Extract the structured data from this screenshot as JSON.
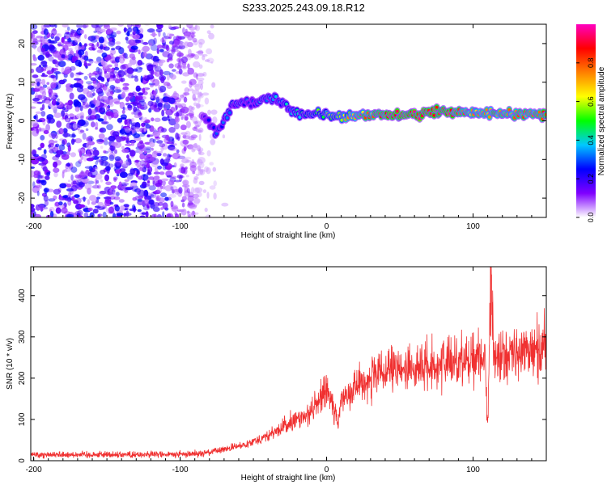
{
  "title": "S233.2025.243.09.18.R12",
  "chart_data": [
    {
      "type": "heatmap",
      "xlabel": "Height of straight line (km)",
      "ylabel": "Frequency (Hz)",
      "xlim": [
        -202,
        150
      ],
      "ylim": [
        -25,
        25
      ],
      "xticks": [
        -200,
        -100,
        0,
        100
      ],
      "yticks": [
        -20,
        -10,
        0,
        10,
        20
      ],
      "colorbar": {
        "label": "Normalized spectral amplitude",
        "range": [
          0,
          1
        ],
        "ticks": [
          "0.0",
          "0.2",
          "0.4",
          "0.6",
          "0.8"
        ],
        "colors": [
          "#ffffff",
          "#7f00ff",
          "#0000ff",
          "#00c8ff",
          "#00ff00",
          "#ffff00",
          "#ff8000",
          "#ff0000",
          "#ff00c0"
        ]
      },
      "description_points": {
        "noise_region_x": [
          -202,
          -85
        ],
        "ridge": [
          {
            "x": -85,
            "f": 2,
            "a": 0.2
          },
          {
            "x": -75,
            "f": -3,
            "a": 0.3
          },
          {
            "x": -62,
            "f": 5,
            "a": 0.3
          },
          {
            "x": -50,
            "f": 5,
            "a": 0.3
          },
          {
            "x": -35,
            "f": 6,
            "a": 0.35
          },
          {
            "x": -20,
            "f": 2,
            "a": 0.4
          },
          {
            "x": 0,
            "f": 1.5,
            "a": 0.5
          },
          {
            "x": 30,
            "f": 1.5,
            "a": 0.8
          },
          {
            "x": 60,
            "f": 1.5,
            "a": 0.9
          },
          {
            "x": 80,
            "f": 2.5,
            "a": 0.85
          },
          {
            "x": 100,
            "f": 2,
            "a": 0.7
          },
          {
            "x": 150,
            "f": 1.5,
            "a": 0.8
          }
        ]
      }
    },
    {
      "type": "line",
      "xlabel": "Height of straight line (km)",
      "ylabel": "SNR (10 * v/v)",
      "xlim": [
        -202,
        150
      ],
      "ylim": [
        0,
        470
      ],
      "xticks": [
        -200,
        -100,
        0,
        100
      ],
      "yticks": [
        0,
        100,
        200,
        300,
        400
      ],
      "series": [
        {
          "name": "SNR",
          "color": "#f03030",
          "x": [
            -202,
            -150,
            -100,
            -80,
            -60,
            -40,
            -30,
            -20,
            -10,
            0,
            8,
            10,
            15,
            20,
            30,
            40,
            50,
            60,
            80,
            100,
            108,
            110,
            112,
            114,
            120,
            130,
            150
          ],
          "y": [
            15,
            15,
            15,
            20,
            35,
            60,
            80,
            100,
            120,
            175,
            90,
            150,
            170,
            180,
            200,
            210,
            220,
            225,
            235,
            250,
            255,
            80,
            470,
            250,
            255,
            260,
            275
          ]
        }
      ]
    }
  ]
}
